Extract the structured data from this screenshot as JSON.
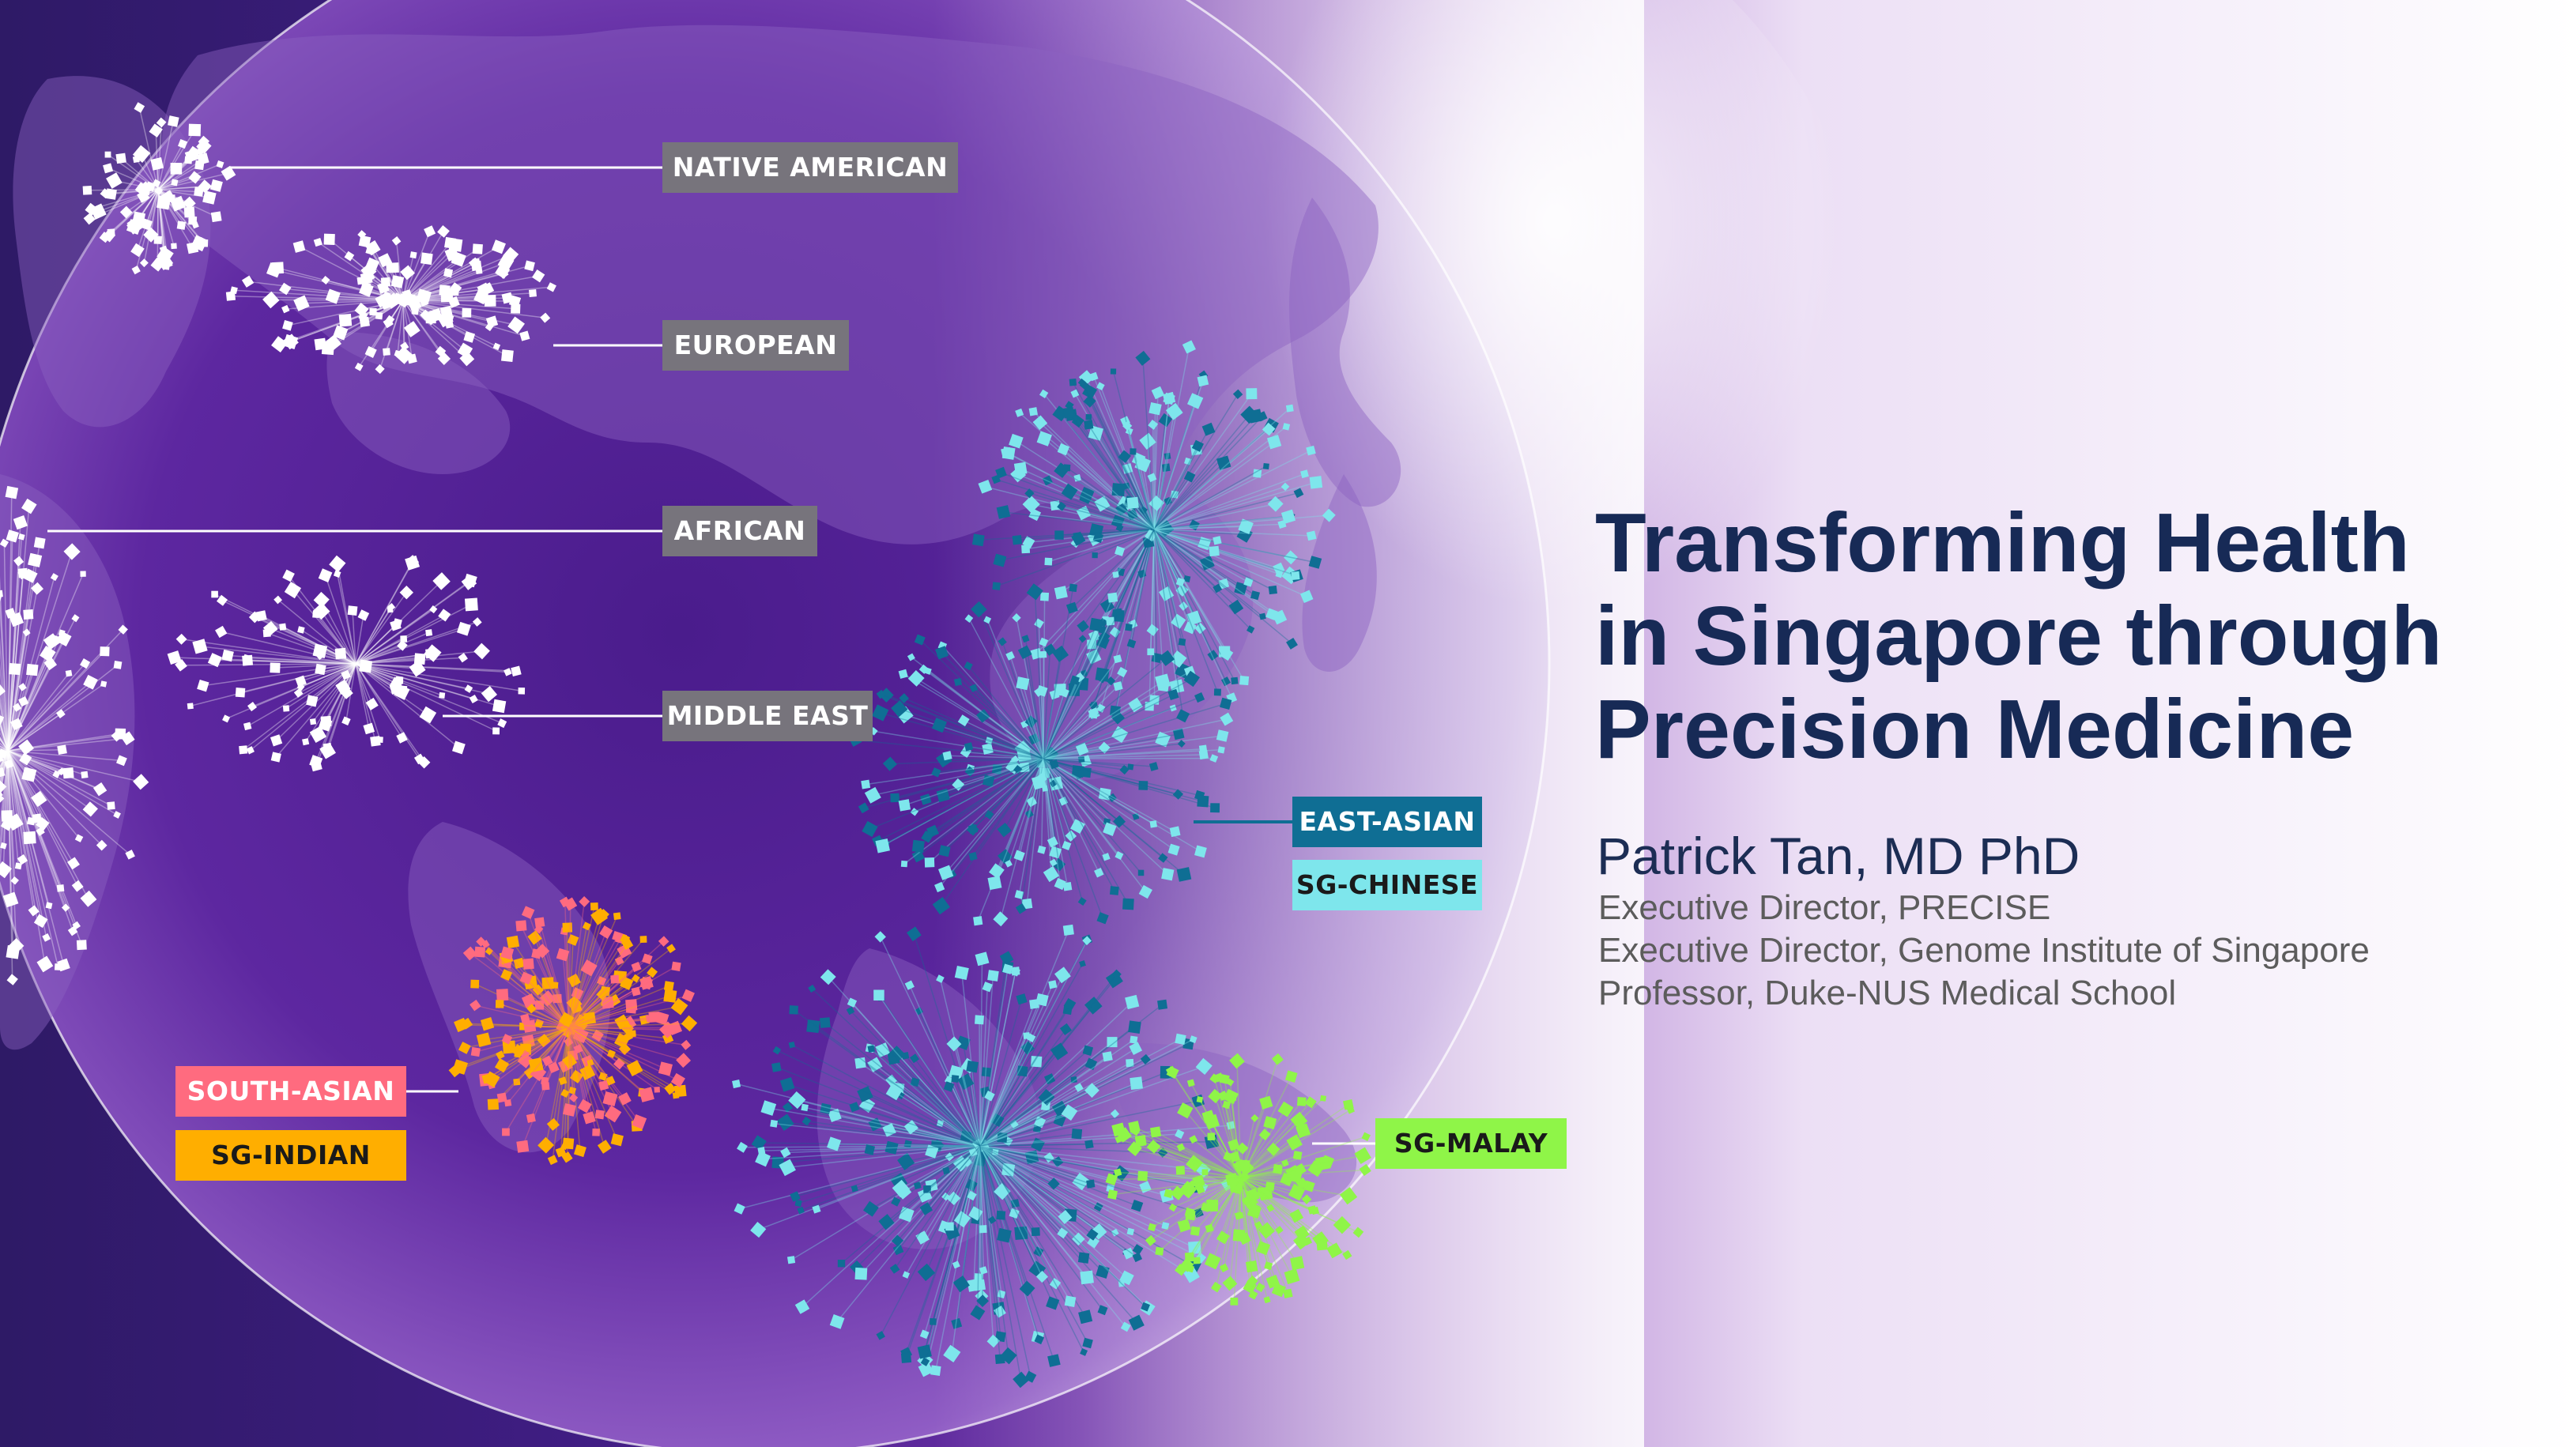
{
  "slide": {
    "title_lines": [
      "Transforming Health",
      "in Singapore through",
      "Precision Medicine"
    ],
    "author": "Patrick Tan, MD PhD",
    "roles": [
      "Executive Director, PRECISE",
      "Executive Director, Genome Institute of Singapore",
      "Professor, Duke-NUS Medical School"
    ]
  },
  "populations": [
    {
      "label": "NATIVE AMERICAN",
      "color": "#ffffff"
    },
    {
      "label": "EUROPEAN",
      "color": "#ffffff"
    },
    {
      "label": "AFRICAN",
      "color": "#ffffff"
    },
    {
      "label": "MIDDLE EAST",
      "color": "#ffffff"
    },
    {
      "label": "EAST-ASIAN",
      "color": "#0f6e94"
    },
    {
      "label": "SG-CHINESE",
      "color": "#7ee6ec"
    },
    {
      "label": "SOUTH-ASIAN",
      "color": "#ff6b7f"
    },
    {
      "label": "SG-INDIAN",
      "color": "#ffae00"
    },
    {
      "label": "SG-MALAY",
      "color": "#8ff548"
    }
  ],
  "colors": {
    "title": "#172a56",
    "label_gray": "#77747c",
    "globe_dark": "#2a1760",
    "globe_mid": "#6a2fa6"
  }
}
